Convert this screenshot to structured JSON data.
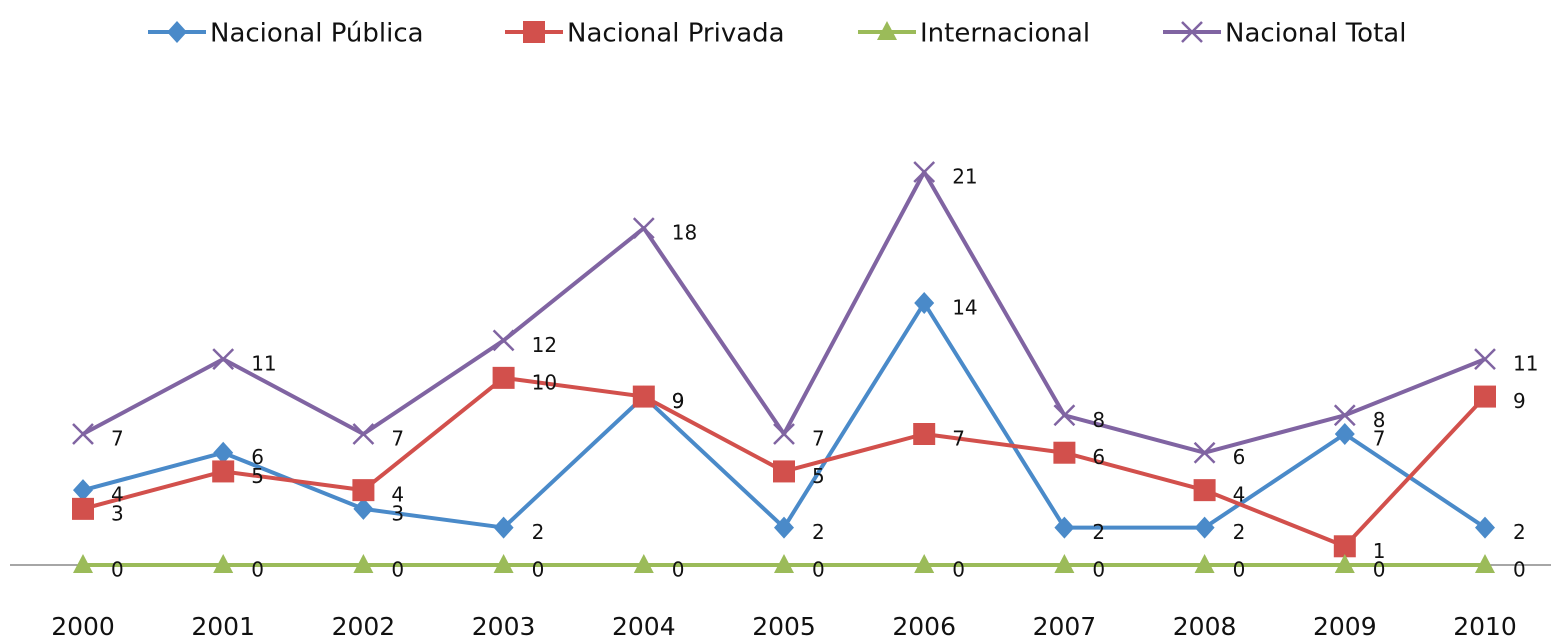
{
  "chart_data": {
    "type": "line",
    "categories": [
      "2000",
      "2001",
      "2002",
      "2003",
      "2004",
      "2005",
      "2006",
      "2007",
      "2008",
      "2009",
      "2010"
    ],
    "series": [
      {
        "name": "Nacional Pública",
        "color": "#4a8ac9",
        "marker": "diamond",
        "values": [
          4,
          6,
          3,
          2,
          9,
          2,
          14,
          2,
          2,
          7,
          2
        ]
      },
      {
        "name": "Nacional Privada",
        "color": "#d2504c",
        "marker": "square",
        "values": [
          3,
          5,
          4,
          10,
          9,
          5,
          7,
          6,
          4,
          1,
          9
        ]
      },
      {
        "name": "Internacional",
        "color": "#9bbb59",
        "marker": "triangle",
        "values": [
          0,
          0,
          0,
          0,
          0,
          0,
          0,
          0,
          0,
          0,
          0
        ]
      },
      {
        "name": "Nacional Total",
        "color": "#8064a2",
        "marker": "x",
        "values": [
          7,
          11,
          7,
          12,
          18,
          7,
          21,
          8,
          6,
          8,
          11
        ]
      }
    ],
    "ylim": [
      0,
      21
    ],
    "legend": "top"
  }
}
